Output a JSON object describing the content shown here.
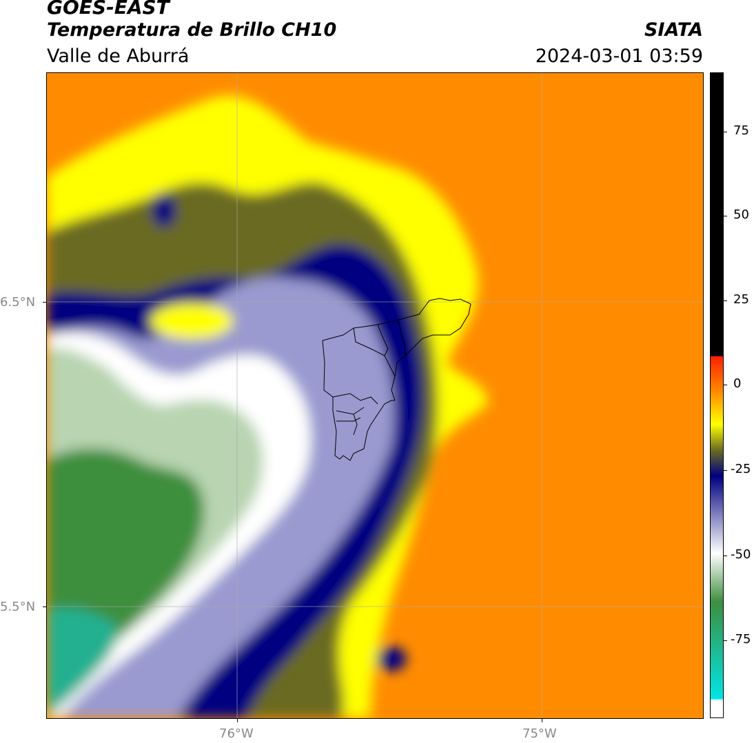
{
  "header": {
    "title1": "GOES-EAST",
    "title2": "Temperatura de Brillo CH10",
    "subtitle": "Valle de Aburrá",
    "org": "SIATA",
    "datetime": "2024-03-01 03:59"
  },
  "map": {
    "lat_labels": [
      "6.5°N",
      "5.5°N"
    ],
    "lon_labels": [
      "76°W",
      "75°W"
    ],
    "colors": {
      "orange": "#ff8c00",
      "yellow": "#ffff00",
      "olive": "#6b6b24",
      "navy": "#000080",
      "lavender": "#9a9ad0",
      "white": "#ffffff",
      "light_green": "#b8d4b0",
      "green": "#3e8e3e",
      "teal": "#20b090",
      "grid": "#aaaaaa",
      "boundary": "#000000"
    }
  },
  "colorbar": {
    "ticks": [
      "75",
      "50",
      "25",
      "0",
      "-25",
      "-50",
      "-75"
    ],
    "colors": {
      "black": "#000000",
      "red": "#ff2000",
      "orange": "#ff8c00",
      "yellow": "#ffff00",
      "olive": "#6b6b24",
      "navy": "#000080",
      "white": "#ffffff",
      "green": "#3e8e3e",
      "cyan": "#00e5e5"
    }
  }
}
